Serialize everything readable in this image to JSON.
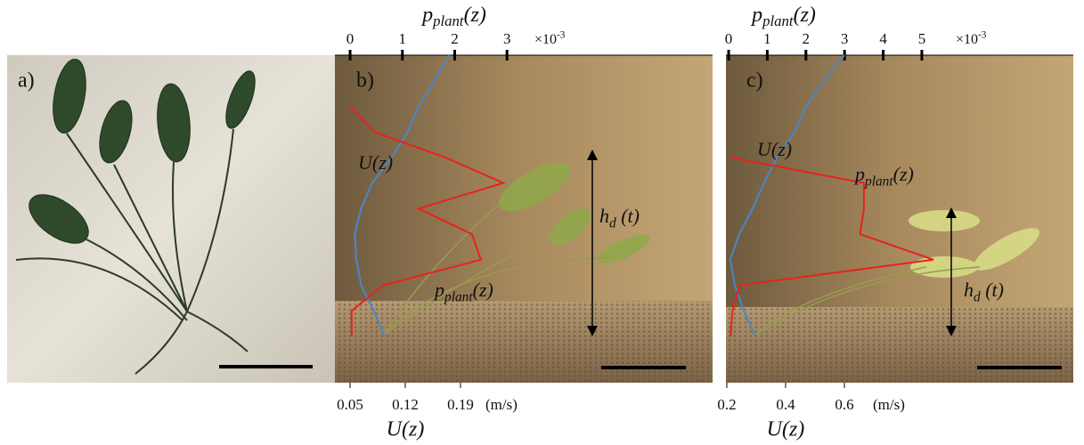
{
  "panel_a": {
    "label": "a)"
  },
  "chart_data": [
    {
      "type": "line",
      "panel_label": "b)",
      "x_label": "U(z)",
      "x_unit": "(m/s)",
      "x2_label": {
        "base": "p",
        "sub": "plant",
        "tail": "(z)"
      },
      "x2_scale": {
        "base": "×10",
        "sup": "-3"
      },
      "xlim": [
        0.0308,
        0.5095
      ],
      "xticks": [
        0.05,
        0.12,
        0.19
      ],
      "x2lim": [
        -0.29,
        6.93
      ],
      "x2ticks": [
        0,
        1,
        2,
        3
      ],
      "series": [
        {
          "name": "U(z)",
          "color": "#4a86c8",
          "axis": "x",
          "values": [
            0.094,
            0.08,
            0.064,
            0.058,
            0.056,
            0.064,
            0.078,
            0.103,
            0.123,
            0.137,
            0.157,
            0.176
          ]
        },
        {
          "color": "#e8221c",
          "axis": "x2",
          "values": [
            0.03,
            0.03,
            0.63,
            2.5,
            2.33,
            1.31,
            2.93,
            1.82,
            0.46,
            0,
            null,
            null
          ]
        }
      ],
      "annotations": [
        {
          "base": "p",
          "sub": "plant",
          "tail": "(z)"
        },
        {
          "base": "h",
          "sub": "d",
          "tail": " (t)"
        }
      ]
    },
    {
      "type": "line",
      "panel_label": "c)",
      "x_label": "U(z)",
      "x_unit": "(m/s)",
      "x2_label": {
        "base": "p",
        "sub": "plant",
        "tail": "(z)"
      },
      "x2_scale": {
        "base": "×10",
        "sup": "-3"
      },
      "xlim": [
        0.197,
        1.379
      ],
      "xticks": [
        0.2,
        0.4,
        0.6
      ],
      "x2lim": [
        -0.07,
        8.92
      ],
      "x2ticks": [
        0,
        1,
        2,
        3,
        4,
        5
      ],
      "series": [
        {
          "name": "U(z)",
          "color": "#4a86c8",
          "axis": "x",
          "values": [
            0.297,
            0.258,
            0.227,
            0.212,
            0.242,
            0.288,
            0.327,
            0.37,
            0.43,
            0.47,
            0.53,
            0.6
          ]
        },
        {
          "color": "#e8221c",
          "axis": "x2",
          "values": [
            0.05,
            0.1,
            0.28,
            5.3,
            3.4,
            3.5,
            3.5,
            0.05,
            null,
            null,
            null,
            null
          ]
        }
      ],
      "annotations": [
        {
          "base": "p",
          "sub": "plant",
          "tail": "(z)"
        },
        {
          "base": "h",
          "sub": "d",
          "tail": " (t)"
        }
      ]
    }
  ]
}
